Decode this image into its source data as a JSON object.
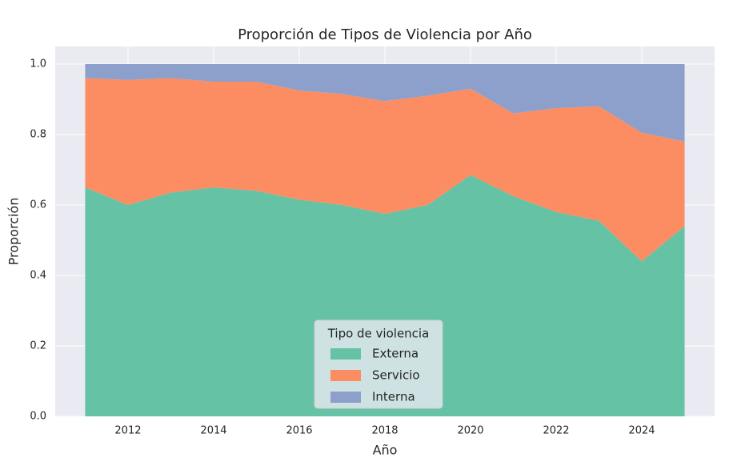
{
  "chart_data": {
    "type": "stacked_area",
    "title": "Proporción de Tipos de Violencia por Año",
    "x_label": "Año",
    "y_label": "Proporción",
    "x": [
      2011,
      2012,
      2013,
      2014,
      2015,
      2016,
      2017,
      2018,
      2019,
      2020,
      2021,
      2022,
      2023,
      2024,
      2025
    ],
    "series": [
      {
        "name": "Externa",
        "color": "#66c2a5",
        "values": [
          0.65,
          0.6,
          0.635,
          0.65,
          0.64,
          0.615,
          0.6,
          0.575,
          0.6,
          0.685,
          0.625,
          0.58,
          0.555,
          0.44,
          0.54
        ]
      },
      {
        "name": "Servicio",
        "color": "#fc8d62",
        "values": [
          0.31,
          0.355,
          0.325,
          0.3,
          0.31,
          0.31,
          0.315,
          0.32,
          0.31,
          0.245,
          0.235,
          0.295,
          0.325,
          0.365,
          0.24
        ]
      },
      {
        "name": "Interna",
        "color": "#8da0cb",
        "values": [
          0.04,
          0.045,
          0.04,
          0.05,
          0.05,
          0.075,
          0.085,
          0.105,
          0.09,
          0.07,
          0.14,
          0.125,
          0.12,
          0.195,
          0.22
        ]
      }
    ],
    "legend_title": "Tipo de violencia",
    "legend_position": "lower center",
    "xlim": [
      2010.3,
      2025.7
    ],
    "ylim": [
      0,
      1.05
    ],
    "xticks": [
      2012,
      2014,
      2016,
      2018,
      2020,
      2022,
      2024
    ],
    "yticks": [
      {
        "value": 0,
        "label": "0.0"
      },
      {
        "value": 0.2,
        "label": "0.2"
      },
      {
        "value": 0.4,
        "label": "0.4"
      },
      {
        "value": 0.6,
        "label": "0.6"
      },
      {
        "value": 0.8,
        "label": "0.8"
      },
      {
        "value": 1,
        "label": "1.0"
      }
    ],
    "grid": true
  }
}
